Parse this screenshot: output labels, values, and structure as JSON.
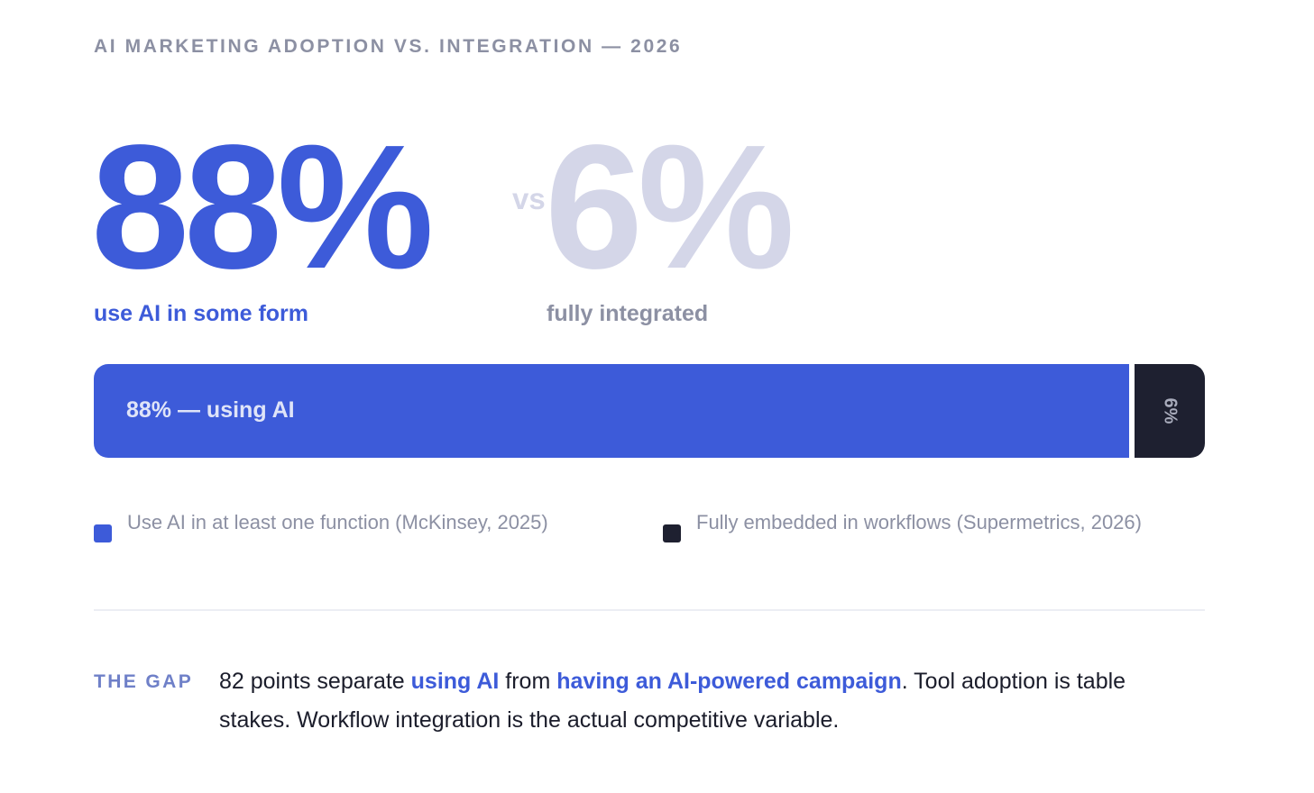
{
  "eyebrow": "AI MARKETING ADOPTION VS. INTEGRATION — 2026",
  "stat_a": {
    "value": "88%",
    "caption": "use AI in some form"
  },
  "vs_label": "vs",
  "stat_b": {
    "value": "6%",
    "caption": "fully integrated"
  },
  "colors": {
    "primary": "#3d5bd9",
    "dark": "#1e2030",
    "muted": "#d4d6e8",
    "gray": "#8c90a3"
  },
  "chart_data": {
    "type": "bar",
    "orientation": "horizontal-stacked",
    "total": 94,
    "segments": [
      {
        "value": 88,
        "label": "88% — using AI",
        "color": "#3d5bd9"
      },
      {
        "value": 6,
        "label": "6%",
        "color": "#1e2030"
      }
    ]
  },
  "legend": [
    {
      "label": "Use AI in at least one function (McKinsey, 2025)",
      "color": "#3d5bd9"
    },
    {
      "label": "Fully embedded in workflows (Supermetrics, 2026)",
      "color": "#1e2030"
    }
  ],
  "gap": {
    "label": "THE GAP",
    "text_1": "82 points separate ",
    "highlight_1": "using AI",
    "text_2": " from ",
    "highlight_2": "having an AI-powered campaign",
    "text_3": ". Tool adoption is table stakes. Workflow integration is the actual competitive variable."
  }
}
